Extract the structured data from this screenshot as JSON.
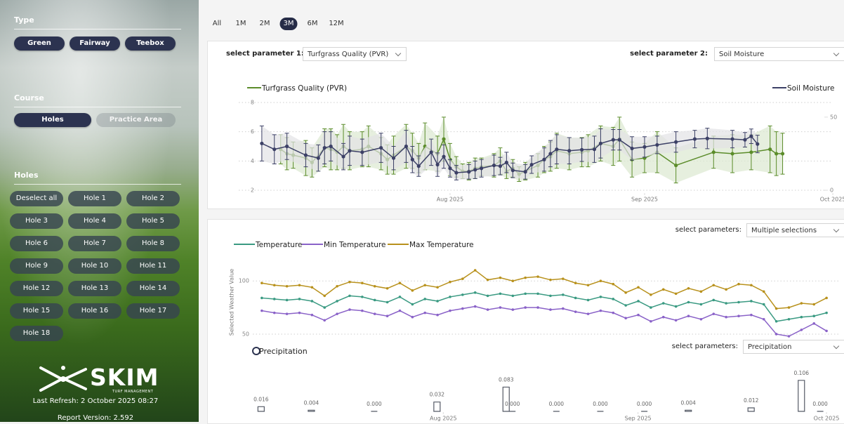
{
  "sidebar": {
    "type_label": "Type",
    "type_buttons": [
      "Green",
      "Fairway",
      "Teebox"
    ],
    "course_label": "Course",
    "course_buttons": [
      "Holes",
      "Practice Area"
    ],
    "course_selected": 0,
    "holes_label": "Holes",
    "hole_buttons": [
      "Deselect all",
      "Hole 1",
      "Hole 2",
      "Hole 3",
      "Hole 4",
      "Hole 5",
      "Hole 6",
      "Hole 7",
      "Hole 8",
      "Hole 9",
      "Hole 10",
      "Hole 11",
      "Hole 12",
      "Hole 13",
      "Hole 14",
      "Hole 15",
      "Hole 16",
      "Hole 17",
      "Hole 18"
    ],
    "logo": "SKIM",
    "logo_sub": "TURF MANAGEMENT",
    "last_refresh": "Last Refresh: 2 October 2025 08:27",
    "report_version": "Report Version: 2.592"
  },
  "range_buttons": [
    "All",
    "1M",
    "2M",
    "3M",
    "6M",
    "12M"
  ],
  "range_selected": 3,
  "panel1": {
    "param1_label": "select parameter 1:",
    "param1_value": "Turfgrass Quality (PVR)",
    "param2_label": "select parameter 2:",
    "param2_value": "Soil Moisture"
  },
  "panel2": {
    "params_label": "select parameters:",
    "params_value": "Multiple selections"
  },
  "panel3": {
    "params_label": "select parameters:",
    "params_value": "Precipitation"
  },
  "chart_data": [
    {
      "type": "line",
      "xlim": [
        -1,
        93
      ],
      "xticks": [
        {
          "value": 31,
          "label": "Aug 2025"
        },
        {
          "value": 62,
          "label": "Sep 2025"
        },
        {
          "value": 92,
          "label": "Oct 2025"
        }
      ],
      "ylim": [
        2,
        8
      ],
      "yticks": [
        2,
        4,
        6,
        8
      ],
      "y2lim": [
        0,
        60
      ],
      "y2ticks": [
        0,
        50
      ],
      "grid": true,
      "series": [
        {
          "name": "Turfgrass Quality (PVR)",
          "color": "#5b8c2a",
          "band_color": "#dce8d0",
          "x": [
            4,
            5,
            6,
            8,
            9,
            11,
            12,
            13,
            14,
            15,
            17,
            18,
            20,
            21,
            22,
            24,
            25,
            26,
            27,
            29,
            30,
            31,
            32,
            33,
            34,
            35,
            36,
            38,
            39,
            40,
            41,
            42,
            43,
            45,
            46,
            47,
            48,
            50,
            52,
            53,
            55,
            57,
            58,
            60,
            62,
            64,
            67,
            73,
            76,
            79,
            82,
            83,
            84
          ],
          "values": [
            4.8,
            4.5,
            4.4,
            4.2,
            3.9,
            4.9,
            4.8,
            4.6,
            5.0,
            4.7,
            4.8,
            5.0,
            4.5,
            4.1,
            4.4,
            5.0,
            4.7,
            4.2,
            5.0,
            4.5,
            5.5,
            4.1,
            3.6,
            3.3,
            3.3,
            3.5,
            3.6,
            3.7,
            4.0,
            3.3,
            3.5,
            3.1,
            3.3,
            3.7,
            4.1,
            4.3,
            4.7,
            4.5,
            4.6,
            4.7,
            5.2,
            5.0,
            5.5,
            4.1,
            4.2,
            4.6,
            3.7,
            4.6,
            4.5,
            4.6,
            4.8,
            4.5,
            4.5
          ],
          "errors": [
            1.0,
            1.1,
            0.9,
            1.2,
            1.0,
            1.3,
            1.4,
            1.2,
            1.5,
            1.3,
            1.2,
            1.4,
            1.1,
            1.0,
            1.3,
            1.5,
            1.2,
            1.0,
            1.6,
            1.2,
            1.5,
            1.1,
            0.7,
            0.5,
            0.6,
            0.7,
            0.6,
            0.8,
            0.9,
            0.5,
            0.6,
            0.5,
            0.6,
            0.8,
            0.9,
            1.0,
            1.2,
            1.1,
            1.0,
            1.1,
            1.2,
            1.3,
            1.5,
            1.2,
            1.0,
            1.4,
            1.2,
            1.1,
            1.3,
            1.2,
            1.6,
            1.5,
            1.4
          ]
        },
        {
          "name": "Soil Moisture",
          "color": "#3c4066",
          "band_color": "#e2e2e6",
          "axis": "y2",
          "x": [
            1,
            3,
            5,
            8,
            10,
            11,
            12,
            14,
            15,
            17,
            20,
            22,
            24,
            25,
            26,
            28,
            29,
            30,
            31,
            32,
            34,
            35,
            36,
            38,
            39,
            40,
            41,
            43,
            44,
            46,
            47,
            48,
            50,
            52,
            54,
            55,
            57,
            58,
            60,
            62,
            64,
            67,
            70,
            72,
            76,
            78,
            79,
            80
          ],
          "values": [
            32,
            28,
            30,
            24,
            22,
            29,
            30,
            23,
            27,
            26,
            29,
            22,
            30,
            21,
            16.5,
            26,
            17.5,
            23,
            15,
            12,
            12.6,
            14,
            15,
            17,
            16.5,
            19,
            13.6,
            12.6,
            17.5,
            21,
            25,
            28,
            27,
            27.7,
            28,
            32,
            34.5,
            34.5,
            28.6,
            29.6,
            31,
            33,
            35,
            35.4,
            35,
            34.5,
            36.9,
            31.6
          ],
          "errors": [
            12,
            10,
            9,
            8,
            9,
            11,
            10,
            9,
            10,
            9,
            10,
            8,
            11,
            9,
            7,
            9,
            8,
            8,
            6,
            5,
            5,
            6,
            6,
            7,
            6,
            7,
            5,
            5,
            6,
            8,
            9,
            10,
            9,
            8,
            9,
            10,
            7,
            7,
            8,
            7,
            6,
            7,
            6,
            7,
            6,
            5,
            5,
            6
          ]
        }
      ]
    },
    {
      "type": "line",
      "xlim": [
        -1,
        93
      ],
      "ylim": [
        48,
        112
      ],
      "yticks": [
        50,
        100
      ],
      "grid": true,
      "ylabel": "Selected Weather Value",
      "series": [
        {
          "name": "Temperature",
          "color": "#3a9a82",
          "x": [
            1,
            3,
            5,
            7,
            9,
            11,
            13,
            15,
            17,
            19,
            21,
            23,
            25,
            27,
            29,
            31,
            33,
            35,
            37,
            39,
            41,
            43,
            45,
            47,
            49,
            51,
            53,
            55,
            57,
            59,
            61,
            63,
            65,
            67,
            69,
            71,
            73,
            75,
            77,
            79,
            81,
            83,
            85,
            87,
            89,
            91
          ],
          "values": [
            84,
            83,
            82,
            83,
            81,
            75,
            81,
            86,
            85,
            82,
            80,
            85,
            78,
            83,
            81,
            85,
            87,
            89,
            86,
            88,
            86,
            88,
            88,
            86,
            87,
            84,
            82,
            85,
            83,
            77,
            81,
            75,
            79,
            76,
            80,
            78,
            82,
            79,
            80,
            81,
            78,
            62,
            64,
            66,
            67,
            70
          ]
        },
        {
          "name": "Min Temperature",
          "color": "#8a62c8",
          "x": [
            1,
            3,
            5,
            7,
            9,
            11,
            13,
            15,
            17,
            19,
            21,
            23,
            25,
            27,
            29,
            31,
            33,
            35,
            37,
            39,
            41,
            43,
            45,
            47,
            49,
            51,
            53,
            55,
            57,
            59,
            61,
            63,
            65,
            67,
            69,
            71,
            73,
            75,
            77,
            79,
            81,
            83,
            85,
            87,
            89,
            91
          ],
          "values": [
            72,
            70,
            69,
            70,
            68,
            63,
            69,
            73,
            72,
            69,
            67,
            72,
            66,
            70,
            68,
            72,
            74,
            76,
            73,
            75,
            73,
            75,
            75,
            73,
            74,
            71,
            69,
            72,
            70,
            65,
            68,
            62,
            66,
            63,
            67,
            64,
            69,
            66,
            67,
            68,
            64,
            50,
            48,
            54,
            60,
            53
          ]
        },
        {
          "name": "Max Temperature",
          "color": "#b8911c",
          "x": [
            1,
            3,
            5,
            7,
            9,
            11,
            13,
            15,
            17,
            19,
            21,
            23,
            25,
            27,
            29,
            31,
            33,
            35,
            37,
            39,
            41,
            43,
            45,
            47,
            49,
            51,
            53,
            55,
            57,
            59,
            61,
            63,
            65,
            67,
            69,
            71,
            73,
            75,
            77,
            79,
            81,
            83,
            85,
            87,
            89,
            91
          ],
          "values": [
            98,
            96,
            95,
            96,
            94,
            86,
            95,
            99,
            98,
            95,
            93,
            98,
            91,
            96,
            94,
            99,
            102,
            110,
            101,
            103,
            100,
            103,
            104,
            101,
            102,
            98,
            96,
            100,
            97,
            89,
            94,
            87,
            92,
            88,
            93,
            90,
            96,
            92,
            97,
            96,
            90,
            74,
            75,
            79,
            78,
            84
          ]
        }
      ]
    },
    {
      "type": "bar",
      "xlim": [
        -1,
        93
      ],
      "ylim": [
        0,
        0.12
      ],
      "xticks": [
        {
          "value": 31,
          "label": "Aug 2025"
        },
        {
          "value": 62,
          "label": "Sep 2025"
        },
        {
          "value": 92,
          "label": "Oct 2025"
        }
      ],
      "series": [
        {
          "name": "Precipitation",
          "color": "#555a66",
          "x": [
            2,
            10,
            20,
            30,
            41,
            42,
            49,
            56,
            63,
            70,
            80,
            88,
            91
          ],
          "values": [
            0.016,
            0.004,
            0,
            0.032,
            0.083,
            0,
            0,
            0,
            0,
            0.004,
            0.012,
            0.106,
            0
          ],
          "value_labels": [
            "0.016",
            "0.004",
            "0.000",
            "0.032",
            "0.083",
            "0.000",
            "0.000",
            "0.000",
            "0.000",
            "0.004",
            "0.012",
            "0.106",
            "0.000"
          ]
        }
      ]
    }
  ]
}
